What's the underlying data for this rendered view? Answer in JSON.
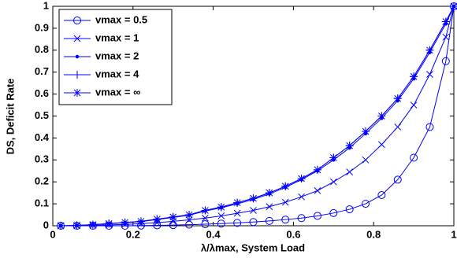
{
  "chart_data": {
    "type": "line",
    "xlabel": "λ/λmax, System Load",
    "ylabel": "DS, Deficit Rate",
    "x": [
      0.02,
      0.06,
      0.1,
      0.14,
      0.18,
      0.22,
      0.26,
      0.3,
      0.34,
      0.38,
      0.42,
      0.46,
      0.5,
      0.54,
      0.58,
      0.62,
      0.66,
      0.7,
      0.74,
      0.78,
      0.82,
      0.86,
      0.9,
      0.94,
      0.98,
      1.0
    ],
    "series": [
      {
        "name": "vmax = 0.5",
        "color": "#0000ff",
        "marker": "circle",
        "values": [
          0,
          0,
          0,
          0,
          0,
          0.001,
          0.002,
          0.003,
          0.005,
          0.007,
          0.01,
          0.013,
          0.017,
          0.022,
          0.028,
          0.035,
          0.045,
          0.058,
          0.075,
          0.1,
          0.14,
          0.21,
          0.31,
          0.45,
          0.75,
          1
        ]
      },
      {
        "name": "vmax = 1",
        "color": "#0000ff",
        "marker": "x",
        "values": [
          0,
          0,
          0.002,
          0.004,
          0.006,
          0.01,
          0.014,
          0.02,
          0.027,
          0.035,
          0.045,
          0.057,
          0.07,
          0.087,
          0.107,
          0.132,
          0.16,
          0.2,
          0.245,
          0.3,
          0.37,
          0.45,
          0.55,
          0.69,
          0.86,
          1
        ]
      },
      {
        "name": "vmax = 2",
        "color": "#0000ff",
        "marker": "dot",
        "values": [
          0,
          0.002,
          0.005,
          0.009,
          0.014,
          0.019,
          0.028,
          0.038,
          0.048,
          0.067,
          0.082,
          0.1,
          0.12,
          0.145,
          0.175,
          0.21,
          0.25,
          0.3,
          0.355,
          0.42,
          0.49,
          0.57,
          0.67,
          0.79,
          0.92,
          1
        ]
      },
      {
        "name": "vmax = 4",
        "color": "#0000ff",
        "marker": "plus",
        "values": [
          0,
          0.002,
          0.005,
          0.01,
          0.015,
          0.02,
          0.03,
          0.04,
          0.05,
          0.07,
          0.085,
          0.105,
          0.125,
          0.15,
          0.18,
          0.215,
          0.255,
          0.31,
          0.365,
          0.43,
          0.5,
          0.58,
          0.68,
          0.8,
          0.93,
          1
        ]
      },
      {
        "name": "vmax = ∞",
        "color": "#0000ff",
        "marker": "star",
        "values": [
          0,
          0.002,
          0.005,
          0.01,
          0.015,
          0.02,
          0.03,
          0.04,
          0.05,
          0.07,
          0.085,
          0.105,
          0.125,
          0.15,
          0.18,
          0.215,
          0.255,
          0.31,
          0.365,
          0.43,
          0.5,
          0.58,
          0.68,
          0.8,
          0.93,
          1
        ]
      }
    ],
    "xlim": [
      0,
      1
    ],
    "xticks": [
      0,
      0.2,
      0.4,
      0.6,
      0.8,
      1
    ],
    "ylim": [
      0,
      1
    ],
    "yticks": [
      0,
      0.1,
      0.2,
      0.3,
      0.4,
      0.5,
      0.6,
      0.7,
      0.8,
      0.9,
      1
    ],
    "legend": "upper left",
    "grid": false
  }
}
